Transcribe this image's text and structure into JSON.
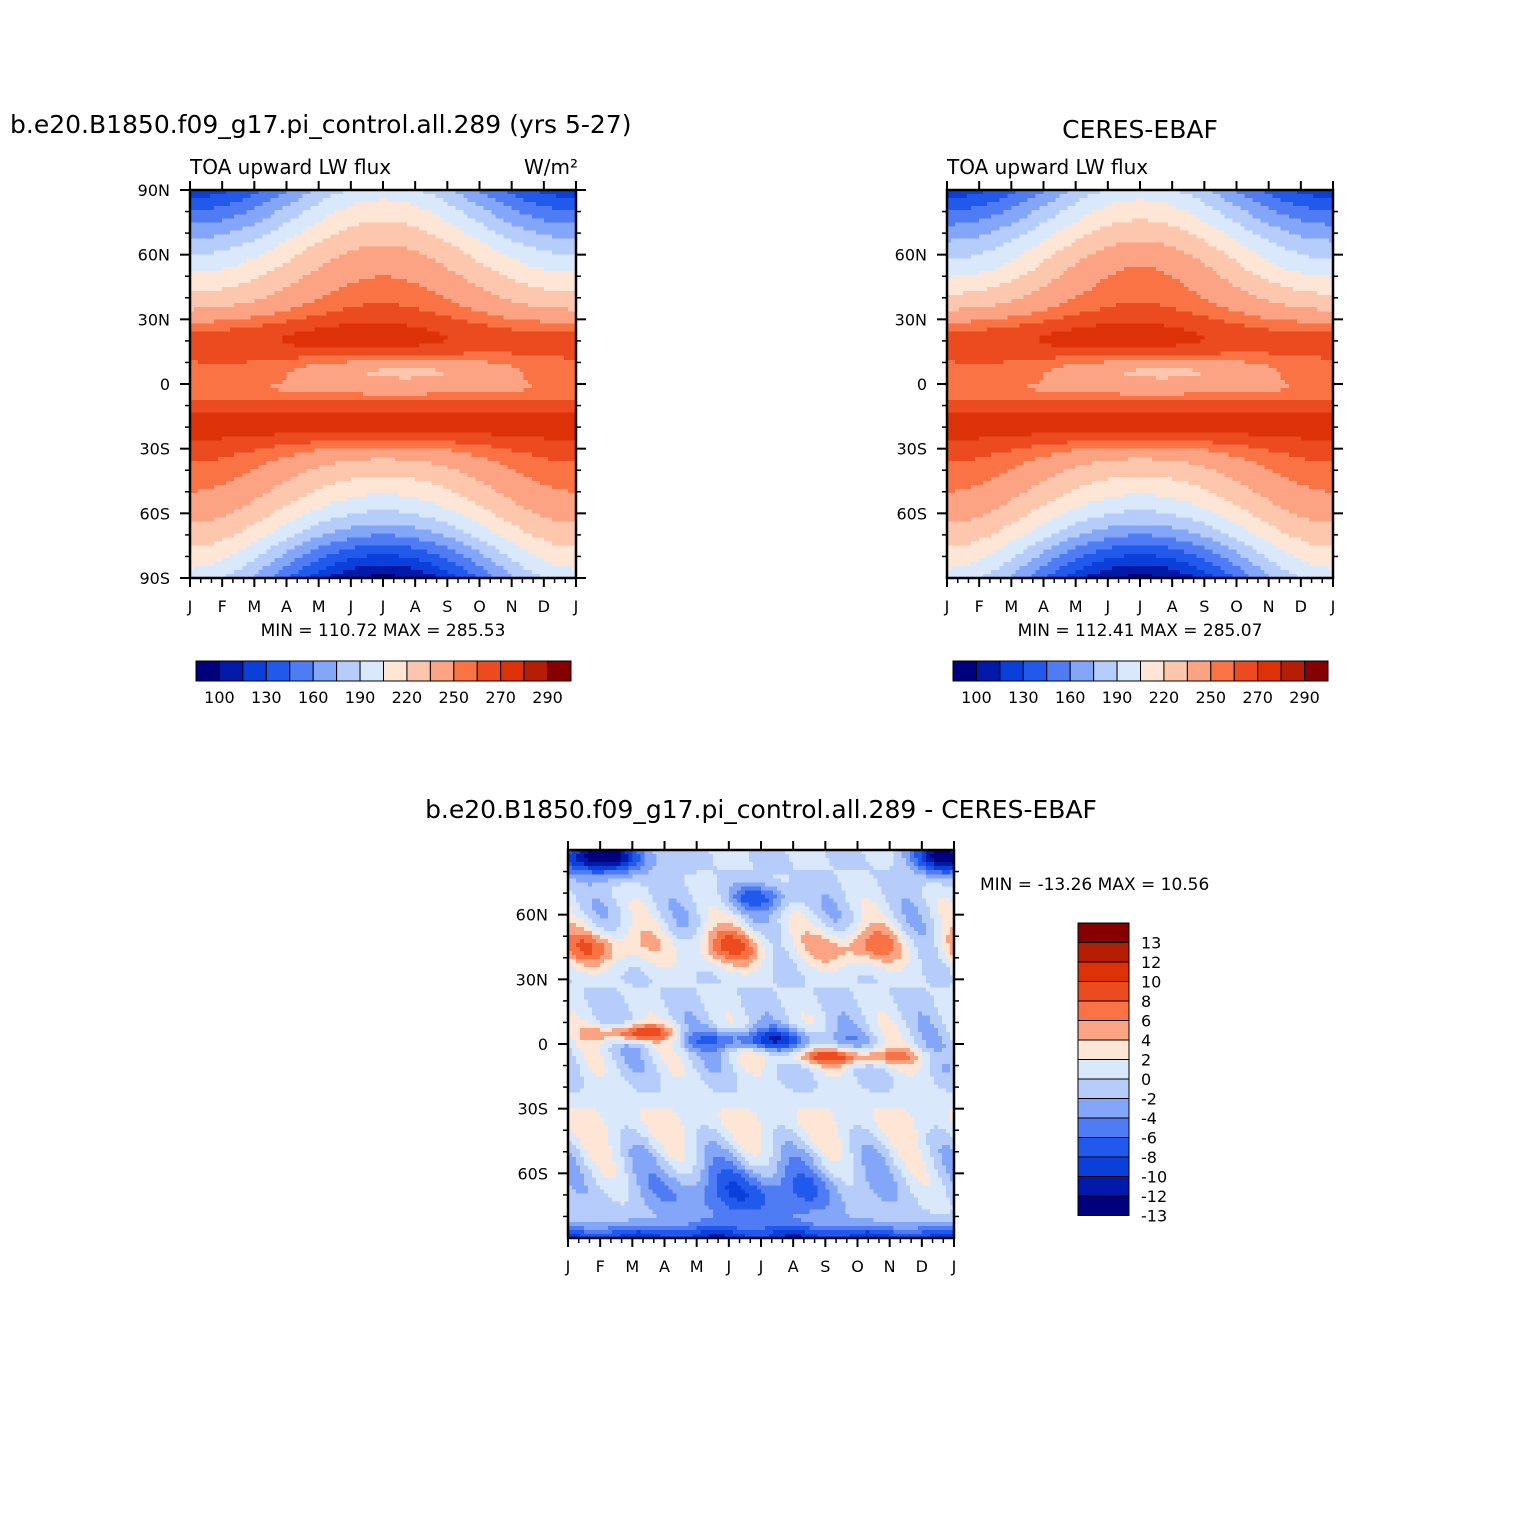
{
  "chart_data": [
    {
      "type": "heatmap",
      "title": "b.e20.B1850.f09_g17.pi_control.all.289 (yrs 5-27)",
      "left_label": "TOA upward LW flux",
      "units": "W/m²",
      "x_ticks": [
        "J",
        "F",
        "M",
        "A",
        "M",
        "J",
        "J",
        "A",
        "S",
        "O",
        "N",
        "D",
        "J"
      ],
      "y_ticks": [
        "90N",
        "60N",
        "30N",
        "0",
        "30S",
        "60S",
        "90S"
      ],
      "stats": "MIN = 110.72 MAX = 285.53",
      "colorbar_labels": [
        "100",
        "130",
        "160",
        "190",
        "220",
        "250",
        "270",
        "290"
      ],
      "min": 110.72,
      "max": 285.53
    },
    {
      "type": "heatmap",
      "title": "CERES-EBAF",
      "left_label": "TOA upward LW flux",
      "x_ticks": [
        "J",
        "F",
        "M",
        "A",
        "M",
        "J",
        "J",
        "A",
        "S",
        "O",
        "N",
        "D",
        "J"
      ],
      "y_ticks": [
        "60N",
        "30N",
        "0",
        "30S",
        "60S"
      ],
      "stats": "MIN = 112.41 MAX = 285.07",
      "colorbar_labels": [
        "100",
        "130",
        "160",
        "190",
        "220",
        "250",
        "270",
        "290"
      ],
      "min": 112.41,
      "max": 285.07
    },
    {
      "type": "heatmap",
      "title": "b.e20.B1850.f09_g17.pi_control.all.289 - CERES-EBAF",
      "x_ticks": [
        "J",
        "F",
        "M",
        "A",
        "M",
        "J",
        "J",
        "A",
        "S",
        "O",
        "N",
        "D",
        "J"
      ],
      "y_ticks": [
        "60N",
        "30N",
        "0",
        "30S",
        "60S"
      ],
      "stats": "MIN = -13.26 MAX =  10.56",
      "colorbar_labels": [
        "13",
        "12",
        "10",
        "8",
        "6",
        "4",
        "2",
        "0",
        "-2",
        "-4",
        "-6",
        "-8",
        "-10",
        "-12",
        "-13"
      ],
      "min": -13.26,
      "max": 10.56
    }
  ],
  "colors": {
    "abs_scale": [
      "#00007f",
      "#0019a8",
      "#0b3fd9",
      "#2159ec",
      "#4f7cf4",
      "#84a6f8",
      "#b6cdfb",
      "#dae8fb",
      "#fde6d5",
      "#fdc7ad",
      "#fca383",
      "#f97344",
      "#ec4b20",
      "#dd3108",
      "#b61d05",
      "#870000"
    ],
    "diff_scale": [
      "#870000",
      "#b61d05",
      "#dd3108",
      "#ec4b20",
      "#f97344",
      "#fca383",
      "#fde6d5",
      "#dae8fb",
      "#b6cdfb",
      "#84a6f8",
      "#4f7cf4",
      "#2159ec",
      "#0b3fd9",
      "#0019a8",
      "#00007f"
    ]
  }
}
